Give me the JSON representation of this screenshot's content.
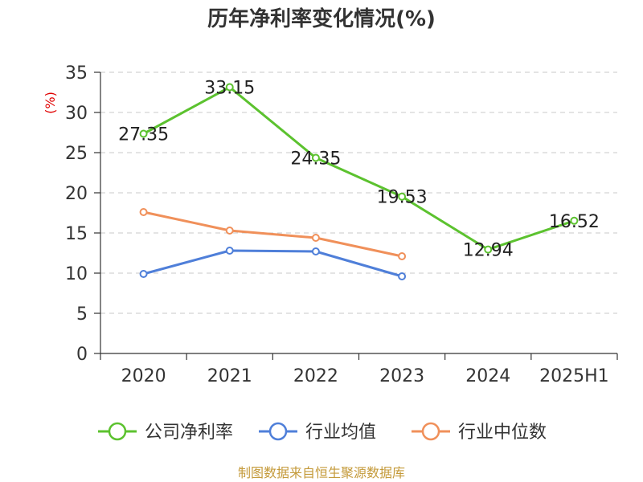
{
  "chart_data": {
    "type": "line",
    "title": "历年净利率变化情况(%)",
    "ylabel": "(%)",
    "xlabel": "",
    "categories": [
      "2020",
      "2021",
      "2022",
      "2023",
      "2024",
      "2025H1"
    ],
    "ylim": [
      0,
      35
    ],
    "yticks": [
      "0",
      "5",
      "10",
      "15",
      "20",
      "25",
      "30",
      "35"
    ],
    "grid": "horizontal-dashed",
    "legend_position": "bottom",
    "series": [
      {
        "name": "公司净利率",
        "color": "#5cc22f",
        "values": [
          27.35,
          33.15,
          24.35,
          19.53,
          12.94,
          16.52
        ],
        "labels": [
          "27.35",
          "33.15",
          "24.35",
          "19.53",
          "12.94",
          "16.52"
        ]
      },
      {
        "name": "行业均值",
        "color": "#4f7fd9",
        "values": [
          9.9,
          12.8,
          12.7,
          9.6,
          null,
          null
        ]
      },
      {
        "name": "行业中位数",
        "color": "#f0905a",
        "values": [
          17.6,
          15.3,
          14.4,
          12.1,
          null,
          null
        ]
      }
    ],
    "source": "制图数据来自恒生聚源数据库"
  }
}
